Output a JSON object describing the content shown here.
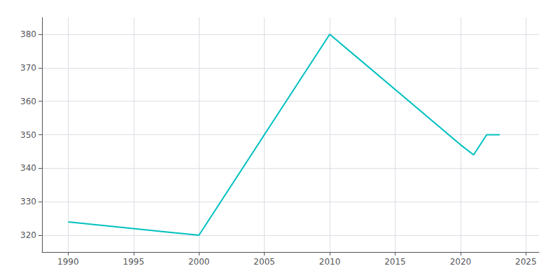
{
  "chart_data": {
    "type": "line",
    "x": [
      1990,
      2000,
      2010,
      2020,
      2021,
      2022,
      2023
    ],
    "values": [
      324,
      320,
      380,
      347,
      344,
      350,
      350
    ],
    "color": "#00C0C0",
    "xlim": [
      1988,
      2026
    ],
    "ylim": [
      315,
      385
    ],
    "xticks": [
      1990,
      1995,
      2000,
      2005,
      2010,
      2015,
      2020,
      2025
    ],
    "yticks": [
      320,
      330,
      340,
      350,
      360,
      370,
      380
    ],
    "grid": true
  }
}
